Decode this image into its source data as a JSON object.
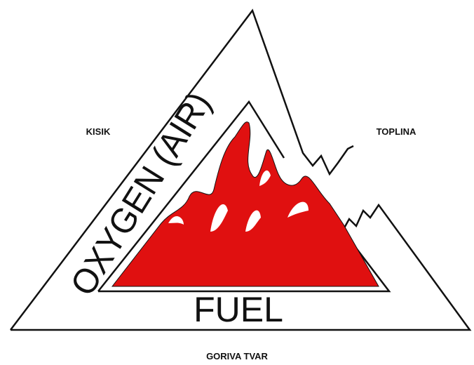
{
  "labels": {
    "top_left": "KISIK",
    "top_right": "TOPLINA",
    "bottom": "GORIVA TVAR"
  },
  "triangle": {
    "left_side": "OXYGEN (AIR)",
    "base": "FUEL"
  }
}
